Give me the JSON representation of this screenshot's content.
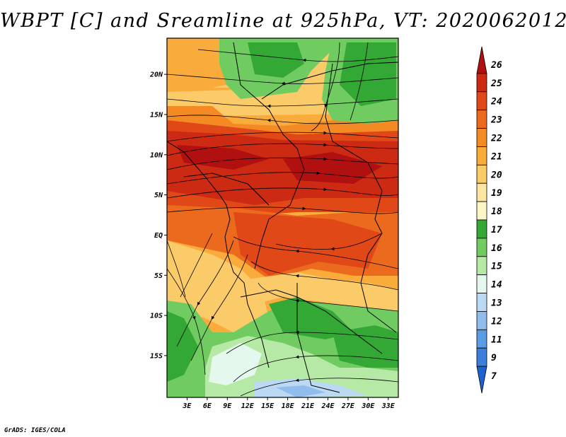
{
  "title": "WBPT [C] and Sreamline at 925hPa, VT: 2020062012",
  "credit": "GrADS: IGES/COLA",
  "map": {
    "lat_labels": [
      "20N",
      "15N",
      "10N",
      "5N",
      "EQ",
      "5S",
      "10S",
      "15S"
    ],
    "lat_values": [
      20,
      15,
      10,
      5,
      0,
      -5,
      -10,
      -15
    ],
    "lon_labels": [
      "3E",
      "6E",
      "9E",
      "12E",
      "15E",
      "18E",
      "21E",
      "24E",
      "27E",
      "30E",
      "33E"
    ],
    "lon_values": [
      3,
      6,
      9,
      12,
      15,
      18,
      21,
      24,
      27,
      30,
      33
    ],
    "lat_range": [
      -20.2,
      24.5
    ],
    "lon_range": [
      0,
      34.5
    ]
  },
  "colorbar": {
    "levels": [
      "26",
      "25",
      "24",
      "23",
      "22",
      "21",
      "20",
      "19",
      "18",
      "17",
      "16",
      "15",
      "14",
      "13",
      "12",
      "11",
      "9",
      "7"
    ],
    "colors": [
      "#b01010",
      "#cc2a12",
      "#e04818",
      "#ec6a1e",
      "#f48a24",
      "#f9ac3c",
      "#fbcb6a",
      "#fde6a2",
      "#fef6c6",
      "#34a834",
      "#70cc60",
      "#b6e8a6",
      "#e4f8ee",
      "#bcd9f4",
      "#90bdec",
      "#5c9ce4",
      "#3c80dc",
      "#1e62d0"
    ]
  }
}
